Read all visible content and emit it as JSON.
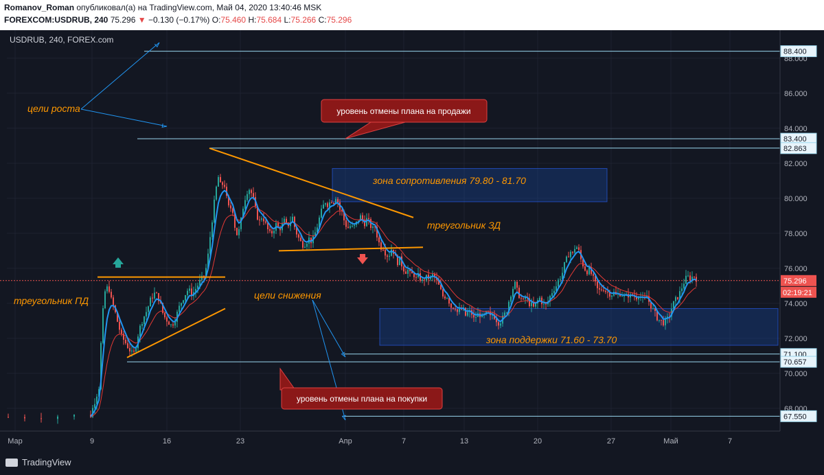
{
  "header": {
    "author": "Romanov_Roman",
    "published": "опубликовал(а) на TradingView.com, Май 04, 2020 13:40:46 MSK",
    "symbol": "FOREXCOM:USDRUB, 240",
    "last": "75.296",
    "arrow": "▼",
    "change": "−0.130 (−0.17%)",
    "o_label": "O:",
    "o": "75.460",
    "h_label": "H:",
    "h": "75.684",
    "l_label": "L:",
    "l": "75.266",
    "c_label": "C:",
    "c": "75.296"
  },
  "footer": {
    "brand": "TradingView"
  },
  "chart_data": {
    "type": "candlestick",
    "symbol_label": "USDRUB, 240, FOREX.com",
    "ylim": [
      66.7,
      89.6
    ],
    "y_ticks": [
      "88.000",
      "86.000",
      "84.000",
      "82.000",
      "80.000",
      "78.000",
      "76.000",
      "74.000",
      "72.000",
      "70.000",
      "68.000"
    ],
    "x_ticks": [
      "Мар",
      "9",
      "16",
      "23",
      "Апр",
      "7",
      "13",
      "20",
      "27",
      "Май",
      "7"
    ],
    "price_levels": [
      {
        "label": "88.400",
        "value": 88.4
      },
      {
        "label": "83.400",
        "value": 83.4
      },
      {
        "label": "82.863",
        "value": 82.863
      },
      {
        "label": "71.100",
        "value": 71.1
      },
      {
        "label": "70.657",
        "value": 70.657
      },
      {
        "label": "67.550",
        "value": 67.55
      }
    ],
    "last_price": {
      "label": "75.296",
      "value": 75.296,
      "countdown": "02:19:21"
    },
    "close_path": [
      [
        0,
        67.5
      ],
      [
        120,
        67.6
      ],
      [
        132,
        69.2
      ],
      [
        136,
        72.5
      ],
      [
        140,
        74.6
      ],
      [
        146,
        75.0
      ],
      [
        150,
        74.2
      ],
      [
        155,
        73.6
      ],
      [
        160,
        72.8
      ],
      [
        165,
        72.1
      ],
      [
        170,
        71.8
      ],
      [
        176,
        71.4
      ],
      [
        182,
        71.0
      ],
      [
        186,
        71.6
      ],
      [
        190,
        72.4
      ],
      [
        196,
        73.1
      ],
      [
        202,
        73.6
      ],
      [
        208,
        74.3
      ],
      [
        214,
        74.6
      ],
      [
        220,
        74.2
      ],
      [
        226,
        73.3
      ],
      [
        232,
        73.0
      ],
      [
        238,
        72.7
      ],
      [
        244,
        73.2
      ],
      [
        250,
        73.9
      ],
      [
        256,
        74.4
      ],
      [
        262,
        74.8
      ],
      [
        268,
        74.5
      ],
      [
        274,
        74.9
      ],
      [
        280,
        75.3
      ],
      [
        286,
        75.6
      ],
      [
        290,
        76.4
      ],
      [
        294,
        77.8
      ],
      [
        298,
        79.1
      ],
      [
        302,
        80.4
      ],
      [
        306,
        81.2
      ],
      [
        310,
        80.6
      ],
      [
        314,
        81.0
      ],
      [
        318,
        80.0
      ],
      [
        322,
        79.3
      ],
      [
        326,
        79.6
      ],
      [
        330,
        78.4
      ],
      [
        334,
        77.8
      ],
      [
        338,
        78.5
      ],
      [
        342,
        79.5
      ],
      [
        346,
        80.2
      ],
      [
        350,
        80.6
      ],
      [
        354,
        80.3
      ],
      [
        358,
        79.8
      ],
      [
        362,
        79.0
      ],
      [
        366,
        78.7
      ],
      [
        370,
        79.0
      ],
      [
        374,
        78.6
      ],
      [
        378,
        78.2
      ],
      [
        382,
        77.9
      ],
      [
        386,
        78.2
      ],
      [
        390,
        78.5
      ],
      [
        394,
        78.2
      ],
      [
        398,
        78.4
      ],
      [
        402,
        78.7
      ],
      [
        406,
        78.4
      ],
      [
        410,
        78.6
      ],
      [
        414,
        78.9
      ],
      [
        418,
        78.2
      ],
      [
        422,
        77.8
      ],
      [
        426,
        77.5
      ],
      [
        430,
        77.3
      ],
      [
        434,
        77.5
      ],
      [
        438,
        77.7
      ],
      [
        442,
        77.5
      ],
      [
        446,
        77.9
      ],
      [
        450,
        78.4
      ],
      [
        454,
        79.0
      ],
      [
        458,
        79.5
      ],
      [
        462,
        79.8
      ],
      [
        466,
        79.6
      ],
      [
        470,
        79.9
      ],
      [
        474,
        79.8
      ],
      [
        478,
        80.2
      ],
      [
        482,
        79.4
      ],
      [
        486,
        79.2
      ],
      [
        490,
        78.6
      ],
      [
        494,
        78.3
      ],
      [
        498,
        78.4
      ],
      [
        502,
        78.3
      ],
      [
        506,
        78.5
      ],
      [
        510,
        78.8
      ],
      [
        514,
        79.0
      ],
      [
        518,
        78.5
      ],
      [
        522,
        78.8
      ],
      [
        526,
        78.6
      ],
      [
        530,
        78.2
      ],
      [
        534,
        78.4
      ],
      [
        538,
        77.7
      ],
      [
        542,
        77.2
      ],
      [
        546,
        77.2
      ],
      [
        550,
        76.8
      ],
      [
        554,
        76.7
      ],
      [
        558,
        77.1
      ],
      [
        562,
        76.9
      ],
      [
        566,
        76.3
      ],
      [
        570,
        76.5
      ],
      [
        574,
        76.1
      ],
      [
        578,
        75.8
      ],
      [
        582,
        75.9
      ],
      [
        586,
        75.6
      ],
      [
        590,
        75.7
      ],
      [
        594,
        75.4
      ],
      [
        598,
        75.6
      ],
      [
        602,
        75.2
      ],
      [
        606,
        75.4
      ],
      [
        610,
        75.5
      ],
      [
        614,
        75.4
      ],
      [
        618,
        75.6
      ],
      [
        622,
        75.4
      ],
      [
        626,
        75.1
      ],
      [
        630,
        74.7
      ],
      [
        634,
        74.3
      ],
      [
        638,
        74.5
      ],
      [
        642,
        74.1
      ],
      [
        646,
        73.7
      ],
      [
        650,
        73.9
      ],
      [
        654,
        73.5
      ],
      [
        658,
        73.6
      ],
      [
        662,
        73.7
      ],
      [
        666,
        73.3
      ],
      [
        670,
        73.5
      ],
      [
        674,
        73.5
      ],
      [
        678,
        73.1
      ],
      [
        682,
        73.3
      ],
      [
        686,
        73.4
      ],
      [
        690,
        73.2
      ],
      [
        694,
        73.3
      ],
      [
        698,
        73.5
      ],
      [
        702,
        73.2
      ],
      [
        706,
        73.4
      ],
      [
        710,
        73.1
      ],
      [
        714,
        72.9
      ],
      [
        718,
        73.0
      ],
      [
        722,
        73.3
      ],
      [
        726,
        73.6
      ],
      [
        730,
        74.3
      ],
      [
        734,
        74.8
      ],
      [
        738,
        75.1
      ],
      [
        742,
        74.6
      ],
      [
        746,
        74.3
      ],
      [
        750,
        74.1
      ],
      [
        754,
        74.4
      ],
      [
        758,
        74.0
      ],
      [
        762,
        73.9
      ],
      [
        766,
        73.7
      ],
      [
        770,
        74.1
      ],
      [
        774,
        74.3
      ],
      [
        778,
        74.0
      ],
      [
        782,
        73.8
      ],
      [
        786,
        74.1
      ],
      [
        790,
        74.5
      ],
      [
        794,
        74.8
      ],
      [
        798,
        75.0
      ],
      [
        802,
        75.4
      ],
      [
        806,
        75.6
      ],
      [
        810,
        76.2
      ],
      [
        814,
        76.6
      ],
      [
        818,
        77.0
      ],
      [
        822,
        76.8
      ],
      [
        826,
        77.3
      ],
      [
        830,
        77.1
      ],
      [
        834,
        76.5
      ],
      [
        838,
        76.1
      ],
      [
        842,
        75.8
      ],
      [
        846,
        75.9
      ],
      [
        850,
        75.6
      ],
      [
        854,
        75.2
      ],
      [
        858,
        74.8
      ],
      [
        862,
        74.7
      ],
      [
        866,
        74.9
      ],
      [
        870,
        74.7
      ],
      [
        874,
        74.6
      ],
      [
        878,
        74.5
      ],
      [
        882,
        74.6
      ],
      [
        886,
        74.4
      ],
      [
        890,
        74.6
      ],
      [
        894,
        74.5
      ],
      [
        898,
        74.3
      ],
      [
        902,
        74.5
      ],
      [
        906,
        74.4
      ],
      [
        910,
        74.5
      ],
      [
        914,
        74.3
      ],
      [
        918,
        74.5
      ],
      [
        922,
        74.3
      ],
      [
        926,
        74.1
      ],
      [
        930,
        74.4
      ],
      [
        934,
        74.0
      ],
      [
        938,
        73.7
      ],
      [
        942,
        73.4
      ],
      [
        946,
        73.1
      ],
      [
        950,
        73.0
      ],
      [
        954,
        72.9
      ],
      [
        958,
        73.0
      ],
      [
        962,
        73.2
      ],
      [
        966,
        73.7
      ],
      [
        970,
        74.1
      ],
      [
        974,
        74.3
      ],
      [
        978,
        74.6
      ],
      [
        982,
        75.0
      ],
      [
        986,
        75.4
      ],
      [
        990,
        75.5
      ],
      [
        994,
        75.4
      ],
      [
        998,
        75.6
      ],
      [
        1002,
        75.4
      ],
      [
        1006,
        75.6
      ],
      [
        1010,
        75.3
      ]
    ],
    "annotations": {
      "growth_targets": "цели роста",
      "sell_cancel": "уровень отмены плана на продажи",
      "resistance": "зона сопротивления 79.80 - 81.70",
      "triangle_zd": "треугольник ЗД",
      "triangle_pd": "треугольник ПД",
      "decline_targets": "цели снижения",
      "support": "зона поддержки 71.60 - 73.70",
      "buy_cancel": "уровень отмены плана на покупки"
    },
    "zones": [
      {
        "name": "resistance",
        "from": 79.8,
        "to": 81.7
      },
      {
        "name": "support",
        "from": 71.6,
        "to": 73.7
      }
    ],
    "colors": {
      "up": "#26a69a",
      "down": "#ef5350",
      "ma_fast": "#2196f3",
      "ma_slow": "#e53935",
      "levels": "#9ad7ee",
      "annot": "#ff9800",
      "zone": "#1848a0",
      "callout": "#8b1818",
      "callout_border": "#e04040"
    }
  }
}
